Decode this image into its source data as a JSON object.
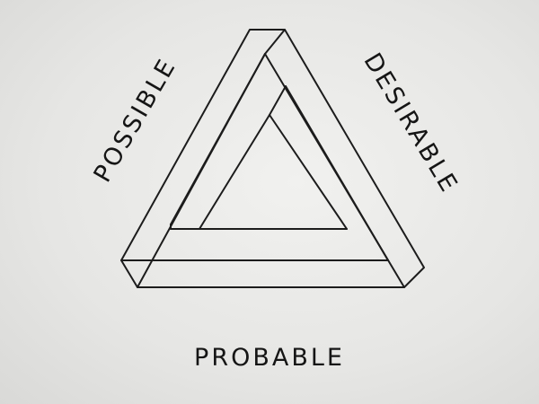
{
  "labels": {
    "left": "POSSIBLE",
    "right": "DESIRABLE",
    "bottom": "PROBABLE"
  },
  "colors": {
    "ink": "#1c1c1c",
    "paper": "#e9e9e7"
  }
}
